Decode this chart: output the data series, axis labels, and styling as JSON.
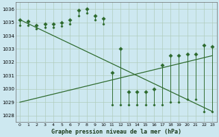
{
  "title": "Graphe pression niveau de la mer (hPa)",
  "bg_color": "#cde8f0",
  "grid_color": "#b0ccbb",
  "line_color": "#2d6a2d",
  "xlim": [
    -0.5,
    23.5
  ],
  "ylim": [
    1027.5,
    1036.5
  ],
  "yticks": [
    1028,
    1029,
    1030,
    1031,
    1032,
    1033,
    1034,
    1035,
    1036
  ],
  "xticks": [
    0,
    1,
    2,
    3,
    4,
    5,
    6,
    7,
    8,
    9,
    10,
    11,
    12,
    13,
    14,
    15,
    16,
    17,
    18,
    19,
    20,
    21,
    22,
    23
  ],
  "hours": [
    0,
    1,
    2,
    3,
    4,
    5,
    6,
    7,
    8,
    9,
    10,
    11,
    12,
    13,
    14,
    15,
    16,
    17,
    18,
    19,
    20,
    21,
    22,
    23
  ],
  "high": [
    1035.2,
    1035.1,
    1034.8,
    1034.9,
    1034.9,
    1035.0,
    1035.2,
    1035.9,
    1036.0,
    1035.5,
    1035.3,
    1031.2,
    1033.0,
    1029.8,
    1029.8,
    1029.8,
    1030.0,
    1031.8,
    1032.5,
    1032.5,
    1032.6,
    1032.6,
    1033.3,
    1033.2
  ],
  "low": [
    1034.8,
    1034.8,
    1034.5,
    1034.6,
    1034.6,
    1034.7,
    1034.9,
    1035.5,
    1035.7,
    1035.2,
    1034.9,
    1028.8,
    1028.8,
    1028.8,
    1028.8,
    1028.8,
    1028.8,
    1028.8,
    1029.0,
    1029.0,
    1029.2,
    1029.2,
    1028.3,
    1028.3
  ],
  "trend1_x": [
    0,
    23
  ],
  "trend1_y": [
    1035.2,
    1028.3
  ],
  "trend2_x": [
    0,
    23
  ],
  "trend2_y": [
    1029.0,
    1032.5
  ],
  "figsize": [
    3.2,
    2.0
  ],
  "dpi": 100
}
